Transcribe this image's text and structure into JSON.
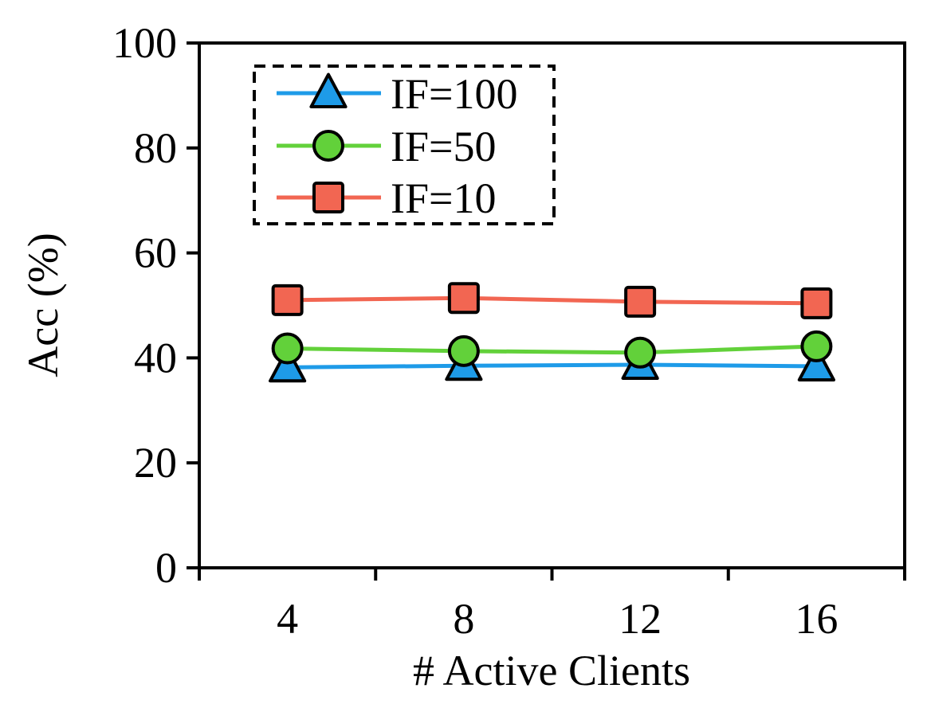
{
  "chart_data": {
    "type": "line",
    "title": "",
    "xlabel": "# Active Clients",
    "ylabel": "Acc (%)",
    "categories": [
      "4",
      "8",
      "12",
      "16"
    ],
    "ylim": [
      0,
      100
    ],
    "yticks": [
      "0",
      "20",
      "40",
      "60",
      "80",
      "100"
    ],
    "grid": false,
    "legend_position": "top-left",
    "legend_style": "dashed-box",
    "series": [
      {
        "name": "IF=100",
        "marker": "triangle",
        "color": "#1e9be8",
        "values": [
          38.2,
          38.5,
          38.7,
          38.4
        ]
      },
      {
        "name": "IF=50",
        "marker": "circle",
        "color": "#62d13a",
        "values": [
          41.8,
          41.3,
          41.0,
          42.2
        ]
      },
      {
        "name": "IF=10",
        "marker": "square",
        "color": "#f26652",
        "values": [
          51.0,
          51.4,
          50.7,
          50.4
        ]
      }
    ]
  }
}
